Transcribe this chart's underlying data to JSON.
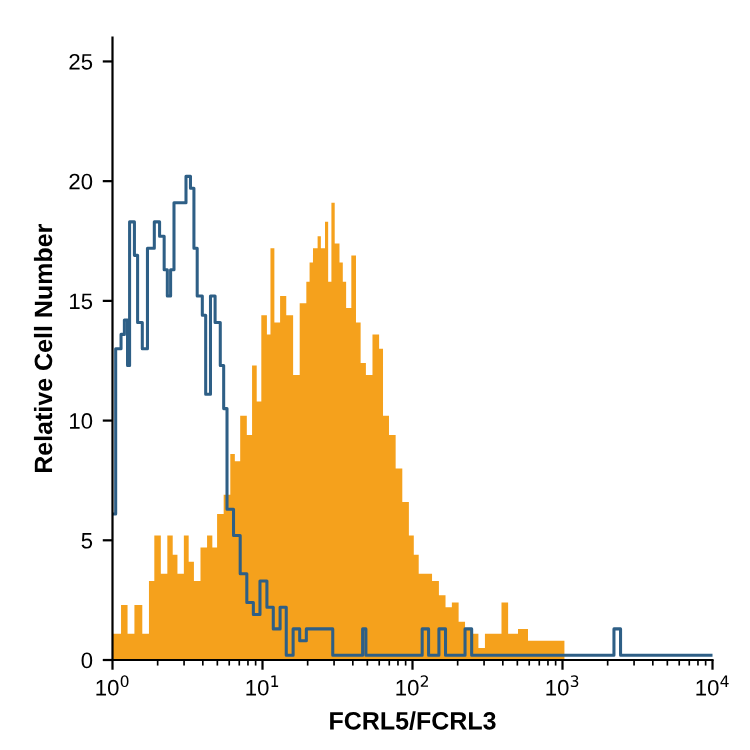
{
  "chart_data": {
    "type": "step",
    "xlabel": "FCRL5/FCRL3",
    "ylabel": "Relative Cell Number",
    "log": "x",
    "xlim": [
      1,
      10000
    ],
    "xticks": [
      {
        "value": 1,
        "label": "10$^{0}$"
      },
      {
        "value": 10,
        "label": "10$^{1}$"
      },
      {
        "value": 100,
        "label": "10$^{2}$"
      },
      {
        "value": 1000,
        "label": "10$^{3}$"
      },
      {
        "value": 10000,
        "label": "10$^{4}$"
      }
    ],
    "ylim": [
      0,
      26
    ],
    "yticks": [
      0,
      5,
      10,
      15,
      20,
      25
    ],
    "grid": false,
    "legend": false,
    "series": [
      {
        "type": "area",
        "color": "#f5a11c",
        "x": [
          1,
          1.14,
          1.26,
          1.4,
          1.58,
          1.75,
          1.9,
          2.1,
          2.32,
          2.52,
          2.71,
          2.99,
          3.22,
          3.49,
          3.86,
          4.27,
          4.63,
          4.98,
          5.51,
          6.1,
          6.54,
          7.1,
          7.86,
          8.52,
          9.15,
          9.82,
          10.7,
          11.3,
          12.0,
          13.1,
          14.4,
          16.0,
          17.7,
          19.6,
          20.6,
          21.7,
          23.3,
          24.5,
          26.1,
          27.4,
          28.8,
          30.3,
          32.6,
          34.3,
          36.1,
          39.1,
          42.0,
          45.1,
          48.9,
          54.1,
          59.9,
          63.6,
          69.7,
          77.2,
          85.5,
          94.6,
          102,
          110,
          122,
          135,
          150,
          166,
          183,
          203,
          224,
          248,
          275,
          304,
          354,
          392,
          434,
          505,
          589,
          685,
          839,
          977,
          1030
        ],
        "values": [
          1.1,
          2.3,
          1.1,
          2.3,
          1.1,
          3.3,
          5.2,
          3.6,
          5.2,
          4.4,
          3.6,
          5.2,
          4.1,
          3.3,
          4.7,
          5.2,
          4.7,
          6.1,
          6.9,
          8.6,
          8.3,
          10.2,
          9.4,
          12.3,
          10.8,
          14.4,
          13.6,
          17.2,
          14.1,
          15.2,
          14.4,
          11.9,
          14.9,
          15.8,
          16.6,
          17.2,
          17.7,
          17.2,
          18.3,
          15.8,
          19.1,
          17.4,
          16.6,
          15.8,
          14.7,
          16.9,
          14.1,
          12.4,
          11.9,
          13.6,
          13.0,
          10.2,
          9.4,
          8.0,
          6.6,
          5.2,
          4.4,
          3.6,
          3.6,
          3.3,
          2.7,
          2.2,
          2.4,
          1.6,
          1.3,
          1.1,
          0.5,
          1.1,
          1.1,
          2.4,
          1.1,
          1.3,
          0.8,
          0.8,
          0.8,
          0.8,
          0
        ]
      },
      {
        "color": "#2e5f86",
        "x": [
          1,
          1.05,
          1.14,
          1.2,
          1.26,
          1.3,
          1.4,
          1.47,
          1.58,
          1.71,
          1.9,
          2.06,
          2.21,
          2.32,
          2.44,
          2.57,
          2.84,
          3.09,
          3.31,
          3.49,
          3.67,
          3.97,
          4.18,
          4.5,
          4.83,
          5.23,
          5.51,
          5.8,
          6.41,
          7.1,
          7.86,
          8.69,
          9.62,
          10.7,
          11.8,
          13.1,
          14.4,
          16.0,
          17.7,
          19.6,
          29.4,
          46.5,
          48.9,
          110,
          116,
          128,
          150,
          166,
          224,
          248,
          2094,
          2203,
          2438,
          10000
        ],
        "values": [
          6.1,
          13.0,
          13.6,
          14.2,
          12.3,
          18.3,
          16.9,
          14.1,
          13.0,
          17.2,
          18.3,
          17.7,
          16.3,
          15.2,
          16.3,
          19.1,
          19.1,
          20.2,
          19.7,
          17.2,
          15.2,
          14.4,
          11.1,
          15.2,
          14.1,
          12.3,
          10.5,
          6.3,
          5.2,
          3.6,
          2.4,
          1.9,
          3.3,
          2.2,
          1.3,
          2.2,
          0.2,
          1.3,
          0.8,
          1.3,
          0.2,
          1.3,
          0.2,
          0.2,
          1.3,
          0.2,
          1.3,
          0.2,
          1.3,
          0.2,
          0.2,
          1.3,
          0.2,
          0.2
        ]
      }
    ]
  }
}
